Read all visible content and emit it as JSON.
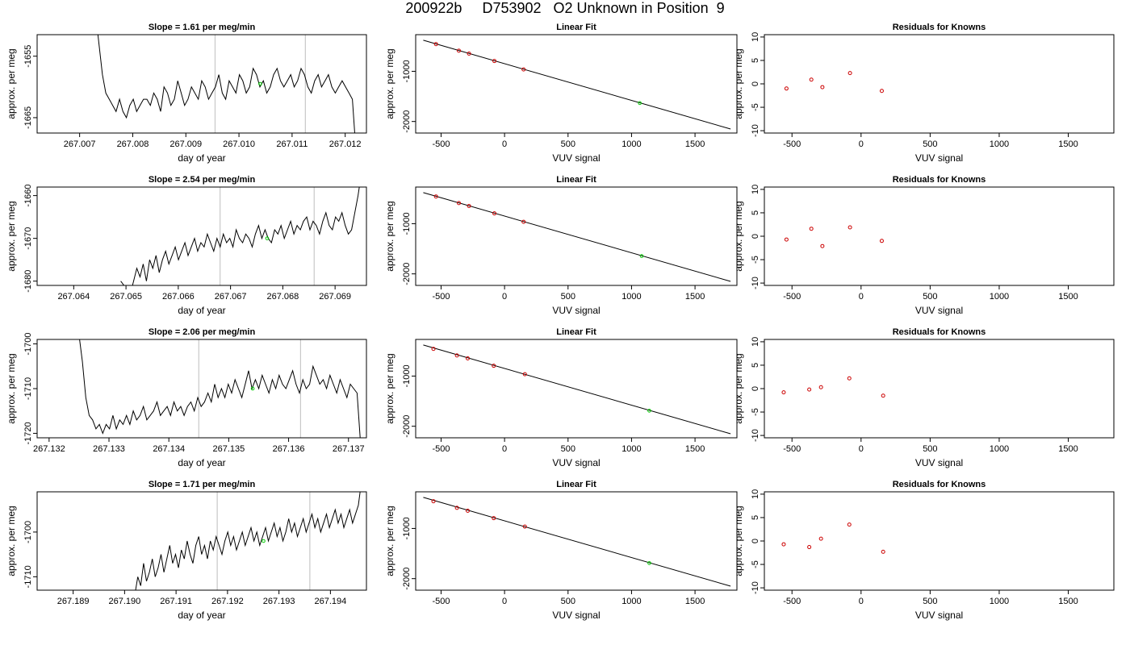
{
  "main_title": "200922b     D753902   O2 Unknown in Position  9",
  "chart_data": [
    {
      "type": "line",
      "row": 0,
      "title": "Slope =  1.61  per meg/min",
      "xlabel": "day of year",
      "ylabel": "approx. per meg",
      "xlim": [
        267.0062,
        267.0124
      ],
      "ylim": [
        -1667.5,
        -1651.5
      ],
      "xticks": [
        "267.007",
        "267.008",
        "267.009",
        "267.010",
        "267.011",
        "267.012"
      ],
      "xtick_values": [
        267.007,
        267.008,
        267.009,
        267.01,
        267.011,
        267.012
      ],
      "yticks": [
        "-1665",
        "-1655"
      ],
      "ytick_values": [
        -1665,
        -1655
      ],
      "vlines": [
        267.00955,
        267.01125
      ],
      "line_x0": 267.0073,
      "line_x1": 267.0122,
      "series": [
        {
          "values": [
            -1648,
            -1653,
            -1658,
            -1661,
            -1662,
            -1663,
            -1664,
            -1662,
            -1664,
            -1665,
            -1663,
            -1662,
            -1664,
            -1663,
            -1662,
            -1662,
            -1663,
            -1661,
            -1662,
            -1664,
            -1660,
            -1661,
            -1663,
            -1662,
            -1659,
            -1661,
            -1663,
            -1662,
            -1660,
            -1661,
            -1662,
            -1659,
            -1660,
            -1662,
            -1661,
            -1660,
            -1658,
            -1661,
            -1662,
            -1659,
            -1660,
            -1661,
            -1658,
            -1659,
            -1661,
            -1660,
            -1657,
            -1658,
            -1660,
            -1659,
            -1661,
            -1660,
            -1658,
            -1657,
            -1659,
            -1660,
            -1659,
            -1658,
            -1660,
            -1659,
            -1657,
            -1658,
            -1660,
            -1661,
            -1659,
            -1658,
            -1660,
            -1659,
            -1658,
            -1660,
            -1661,
            -1660,
            -1659,
            -1660,
            -1661,
            -1662,
            -1670
          ]
        }
      ],
      "marker": {
        "x": 267.0104,
        "y": -1659.5
      }
    },
    {
      "type": "scatter",
      "row": 0,
      "title": "Linear Fit",
      "xlabel": "VUV signal",
      "ylabel": "approx. per meg",
      "xlim": [
        -700,
        1830
      ],
      "ylim": [
        -2230,
        -270
      ],
      "xticks": [
        "-500",
        "0",
        "500",
        "1000",
        "1500"
      ],
      "xtick_values": [
        -500,
        0,
        500,
        1000,
        1500
      ],
      "yticks": [
        "-1000",
        "-2000"
      ],
      "ytick_values": [
        -1000,
        -2000
      ],
      "fit_line": {
        "x0": -640,
        "y0": -380,
        "x1": 1780,
        "y1": -2150
      },
      "knowns": [
        {
          "x": -540,
          "y": -458
        },
        {
          "x": -360,
          "y": -590
        },
        {
          "x": -280,
          "y": -648
        },
        {
          "x": -80,
          "y": -795
        },
        {
          "x": 150,
          "y": -963
        }
      ],
      "unknown": {
        "x": 1065,
        "y": -1633
      }
    },
    {
      "type": "scatter",
      "row": 0,
      "title": "Residuals for Knowns",
      "xlabel": "VUV signal",
      "ylabel": "approx. per meg",
      "xlim": [
        -700,
        1830
      ],
      "ylim": [
        -10.5,
        10.5
      ],
      "xticks": [
        "-500",
        "0",
        "500",
        "1000",
        "1500"
      ],
      "xtick_values": [
        -500,
        0,
        500,
        1000,
        1500
      ],
      "yticks": [
        "-10",
        "-5",
        "0",
        "5",
        "10"
      ],
      "ytick_values": [
        -10,
        -5,
        0,
        5,
        10
      ],
      "knowns": [
        {
          "x": -540,
          "y": -1.0
        },
        {
          "x": -360,
          "y": 0.9
        },
        {
          "x": -280,
          "y": -0.7
        },
        {
          "x": -80,
          "y": 2.3
        },
        {
          "x": 150,
          "y": -1.5
        }
      ]
    },
    {
      "type": "line",
      "row": 1,
      "title": "Slope =  2.54  per meg/min",
      "xlabel": "day of year",
      "ylabel": "approx. per meg",
      "xlim": [
        267.0633,
        267.0696
      ],
      "ylim": [
        -1681,
        -1658
      ],
      "xticks": [
        "267.064",
        "267.065",
        "267.066",
        "267.067",
        "267.068",
        "267.069"
      ],
      "xtick_values": [
        267.064,
        267.065,
        267.066,
        267.067,
        267.068,
        267.069
      ],
      "yticks": [
        "-1680",
        "-1670",
        "-1660"
      ],
      "ytick_values": [
        -1680,
        -1670,
        -1660
      ],
      "vlines": [
        267.0668,
        267.0686
      ],
      "line_x0": 267.0649,
      "line_x1": 267.0695,
      "series": [
        {
          "values": [
            -1680,
            -1681,
            -1682,
            -1683,
            -1680,
            -1677,
            -1679,
            -1676,
            -1680,
            -1675,
            -1677,
            -1674,
            -1678,
            -1675,
            -1673,
            -1676,
            -1674,
            -1672,
            -1675,
            -1673,
            -1671,
            -1674,
            -1672,
            -1670,
            -1673,
            -1671,
            -1672,
            -1669,
            -1671,
            -1673,
            -1670,
            -1672,
            -1669,
            -1671,
            -1670,
            -1672,
            -1668,
            -1670,
            -1671,
            -1669,
            -1670,
            -1672,
            -1669,
            -1667,
            -1670,
            -1668,
            -1670,
            -1671,
            -1668,
            -1669,
            -1667,
            -1670,
            -1668,
            -1666,
            -1669,
            -1667,
            -1668,
            -1666,
            -1665,
            -1668,
            -1666,
            -1667,
            -1669,
            -1666,
            -1664,
            -1667,
            -1668,
            -1665,
            -1666,
            -1664,
            -1667,
            -1669,
            -1668,
            -1664,
            -1660,
            -1655
          ]
        }
      ],
      "marker": {
        "x": 267.0677,
        "y": -1670
      }
    },
    {
      "type": "scatter",
      "row": 1,
      "title": "Linear Fit",
      "xlabel": "VUV signal",
      "ylabel": "approx. per meg",
      "xlim": [
        -700,
        1830
      ],
      "ylim": [
        -2230,
        -270
      ],
      "xticks": [
        "-500",
        "0",
        "500",
        "1000",
        "1500"
      ],
      "xtick_values": [
        -500,
        0,
        500,
        1000,
        1500
      ],
      "yticks": [
        "-1000",
        "-2000"
      ],
      "ytick_values": [
        -1000,
        -2000
      ],
      "fit_line": {
        "x0": -640,
        "y0": -380,
        "x1": 1780,
        "y1": -2150
      },
      "knowns": [
        {
          "x": -540,
          "y": -458
        },
        {
          "x": -360,
          "y": -590
        },
        {
          "x": -280,
          "y": -648
        },
        {
          "x": -80,
          "y": -795
        },
        {
          "x": 150,
          "y": -963
        }
      ],
      "unknown": {
        "x": 1080,
        "y": -1645
      }
    },
    {
      "type": "scatter",
      "row": 1,
      "title": "Residuals for Knowns",
      "xlabel": "VUV signal",
      "ylabel": "approx. per meg",
      "xlim": [
        -700,
        1830
      ],
      "ylim": [
        -10.5,
        10.5
      ],
      "xticks": [
        "-500",
        "0",
        "500",
        "1000",
        "1500"
      ],
      "xtick_values": [
        -500,
        0,
        500,
        1000,
        1500
      ],
      "yticks": [
        "-10",
        "-5",
        "0",
        "5",
        "10"
      ],
      "ytick_values": [
        -10,
        -5,
        0,
        5,
        10
      ],
      "knowns": [
        {
          "x": -540,
          "y": -0.7
        },
        {
          "x": -360,
          "y": 1.6
        },
        {
          "x": -280,
          "y": -2.1
        },
        {
          "x": -80,
          "y": 1.9
        },
        {
          "x": 150,
          "y": -1.0
        }
      ]
    },
    {
      "type": "line",
      "row": 2,
      "title": "Slope =  2.06  per meg/min",
      "xlabel": "day of year",
      "ylabel": "approx. per meg",
      "xlim": [
        267.1318,
        267.1373
      ],
      "ylim": [
        -1721,
        -1699
      ],
      "xticks": [
        "267.132",
        "267.133",
        "267.134",
        "267.135",
        "267.136",
        "267.137"
      ],
      "xtick_values": [
        267.132,
        267.133,
        267.134,
        267.135,
        267.136,
        267.137
      ],
      "yticks": [
        "-1720",
        "-1710",
        "-1700"
      ],
      "ytick_values": [
        -1720,
        -1710,
        -1700
      ],
      "vlines": [
        267.1345,
        267.1362
      ],
      "line_x0": 267.1325,
      "line_x1": 267.1372,
      "series": [
        {
          "values": [
            -1698,
            -1704,
            -1712,
            -1716,
            -1717,
            -1719,
            -1718,
            -1720,
            -1718,
            -1719,
            -1716,
            -1719,
            -1717,
            -1718,
            -1716,
            -1718,
            -1715,
            -1717,
            -1716,
            -1714,
            -1717,
            -1716,
            -1715,
            -1713,
            -1716,
            -1715,
            -1714,
            -1716,
            -1713,
            -1715,
            -1714,
            -1716,
            -1714,
            -1713,
            -1715,
            -1712,
            -1714,
            -1713,
            -1711,
            -1713,
            -1709,
            -1712,
            -1710,
            -1712,
            -1709,
            -1711,
            -1708,
            -1710,
            -1712,
            -1709,
            -1706,
            -1710,
            -1708,
            -1710,
            -1707,
            -1709,
            -1711,
            -1708,
            -1710,
            -1707,
            -1709,
            -1710,
            -1708,
            -1706,
            -1709,
            -1711,
            -1708,
            -1710,
            -1709,
            -1705,
            -1707,
            -1709,
            -1708,
            -1710,
            -1707,
            -1709,
            -1711,
            -1708,
            -1710,
            -1712,
            -1709,
            -1710,
            -1711,
            -1722
          ]
        }
      ],
      "marker": {
        "x": 267.1354,
        "y": -1710
      }
    },
    {
      "type": "scatter",
      "row": 2,
      "title": "Linear Fit",
      "xlabel": "VUV signal",
      "ylabel": "approx. per meg",
      "xlim": [
        -700,
        1830
      ],
      "ylim": [
        -2230,
        -270
      ],
      "xticks": [
        "-500",
        "0",
        "500",
        "1000",
        "1500"
      ],
      "xtick_values": [
        -500,
        0,
        500,
        1000,
        1500
      ],
      "yticks": [
        "-1000",
        "-2000"
      ],
      "ytick_values": [
        -1000,
        -2000
      ],
      "fit_line": {
        "x0": -640,
        "y0": -380,
        "x1": 1780,
        "y1": -2150
      },
      "knowns": [
        {
          "x": -560,
          "y": -458
        },
        {
          "x": -375,
          "y": -590
        },
        {
          "x": -290,
          "y": -648
        },
        {
          "x": -85,
          "y": -795
        },
        {
          "x": 160,
          "y": -963
        }
      ],
      "unknown": {
        "x": 1140,
        "y": -1690
      }
    },
    {
      "type": "scatter",
      "row": 2,
      "title": "Residuals for Knowns",
      "xlabel": "VUV signal",
      "ylabel": "approx. per meg",
      "xlim": [
        -700,
        1830
      ],
      "ylim": [
        -10.5,
        10.5
      ],
      "xticks": [
        "-500",
        "0",
        "500",
        "1000",
        "1500"
      ],
      "xtick_values": [
        -500,
        0,
        500,
        1000,
        1500
      ],
      "yticks": [
        "-10",
        "-5",
        "0",
        "5",
        "10"
      ],
      "ytick_values": [
        -10,
        -5,
        0,
        5,
        10
      ],
      "knowns": [
        {
          "x": -560,
          "y": -0.8
        },
        {
          "x": -375,
          "y": -0.2
        },
        {
          "x": -290,
          "y": 0.3
        },
        {
          "x": -85,
          "y": 2.2
        },
        {
          "x": 160,
          "y": -1.5
        }
      ]
    },
    {
      "type": "line",
      "row": 3,
      "title": "Slope =  1.71  per meg/min",
      "xlabel": "day of year",
      "ylabel": "approx. per meg",
      "xlim": [
        267.1883,
        267.1947
      ],
      "ylim": [
        -1713,
        -1691
      ],
      "xticks": [
        "267.189",
        "267.190",
        "267.191",
        "267.192",
        "267.193",
        "267.194"
      ],
      "xtick_values": [
        267.189,
        267.19,
        267.191,
        267.192,
        267.193,
        267.194
      ],
      "yticks": [
        "-1710",
        "-1700"
      ],
      "ytick_values": [
        -1710,
        -1700
      ],
      "vlines": [
        267.1918,
        267.1936
      ],
      "line_x0": 267.1902,
      "line_x1": 267.1946,
      "series": [
        {
          "values": [
            -1714,
            -1710,
            -1712,
            -1707,
            -1711,
            -1709,
            -1706,
            -1710,
            -1708,
            -1705,
            -1709,
            -1706,
            -1703,
            -1707,
            -1705,
            -1708,
            -1704,
            -1706,
            -1702,
            -1705,
            -1707,
            -1703,
            -1701,
            -1705,
            -1703,
            -1706,
            -1702,
            -1704,
            -1701,
            -1703,
            -1705,
            -1702,
            -1700,
            -1703,
            -1701,
            -1704,
            -1702,
            -1700,
            -1703,
            -1701,
            -1699,
            -1702,
            -1700,
            -1703,
            -1701,
            -1699,
            -1702,
            -1700,
            -1698,
            -1701,
            -1699,
            -1702,
            -1700,
            -1697,
            -1700,
            -1698,
            -1701,
            -1699,
            -1697,
            -1700,
            -1698,
            -1696,
            -1699,
            -1697,
            -1700,
            -1698,
            -1696,
            -1699,
            -1697,
            -1695,
            -1698,
            -1696,
            -1699,
            -1697,
            -1695,
            -1698,
            -1696,
            -1694,
            -1689
          ]
        }
      ],
      "marker": {
        "x": 267.1927,
        "y": -1702
      }
    },
    {
      "type": "scatter",
      "row": 3,
      "title": "Linear Fit",
      "xlabel": "VUV signal",
      "ylabel": "approx. per meg",
      "xlim": [
        -700,
        1830
      ],
      "ylim": [
        -2230,
        -270
      ],
      "xticks": [
        "-500",
        "0",
        "500",
        "1000",
        "1500"
      ],
      "xtick_values": [
        -500,
        0,
        500,
        1000,
        1500
      ],
      "yticks": [
        "-1000",
        "-2000"
      ],
      "ytick_values": [
        -1000,
        -2000
      ],
      "fit_line": {
        "x0": -640,
        "y0": -380,
        "x1": 1780,
        "y1": -2150
      },
      "knowns": [
        {
          "x": -560,
          "y": -458
        },
        {
          "x": -375,
          "y": -590
        },
        {
          "x": -290,
          "y": -648
        },
        {
          "x": -85,
          "y": -795
        },
        {
          "x": 160,
          "y": -963
        }
      ],
      "unknown": {
        "x": 1140,
        "y": -1690
      }
    },
    {
      "type": "scatter",
      "row": 3,
      "title": "Residuals for Knowns",
      "xlabel": "VUV signal",
      "ylabel": "approx. per meg",
      "xlim": [
        -700,
        1830
      ],
      "ylim": [
        -10.5,
        10.5
      ],
      "xticks": [
        "-500",
        "0",
        "500",
        "1000",
        "1500"
      ],
      "xtick_values": [
        -500,
        0,
        500,
        1000,
        1500
      ],
      "yticks": [
        "-10",
        "-5",
        "0",
        "5",
        "10"
      ],
      "ytick_values": [
        -10,
        -5,
        0,
        5,
        10
      ],
      "knowns": [
        {
          "x": -560,
          "y": -0.7
        },
        {
          "x": -375,
          "y": -1.3
        },
        {
          "x": -290,
          "y": 0.5
        },
        {
          "x": -85,
          "y": 3.5
        },
        {
          "x": 160,
          "y": -2.3
        }
      ]
    }
  ],
  "colors": {
    "line": "#000000",
    "known_marker": "#cc0000",
    "unknown_marker": "#00cc00",
    "vline": "#c8c8c8",
    "axis": "#000000"
  }
}
